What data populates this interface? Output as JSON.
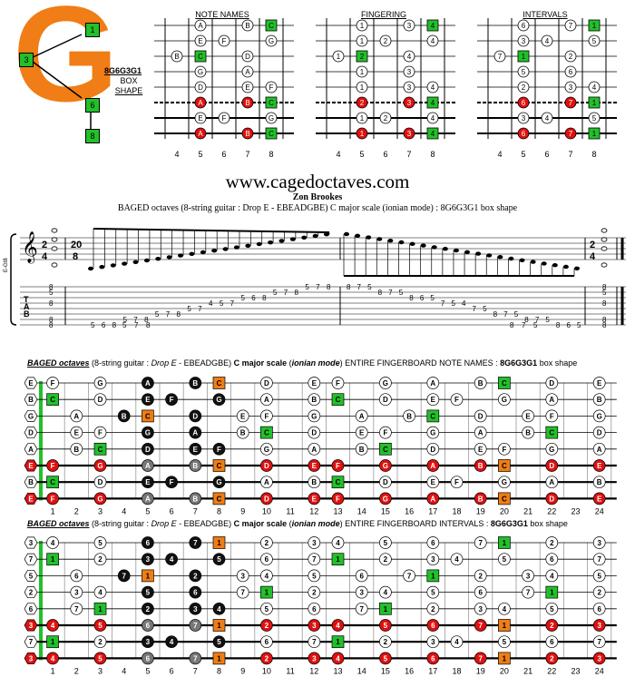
{
  "logo": {
    "letter": "G",
    "shape_code": "8G6G3G1",
    "box_label": "BOX",
    "shape_label": "SHAPE",
    "markers": [
      "1",
      "3",
      "6",
      "8"
    ]
  },
  "diagram_titles": {
    "notes": "NOTE NAMES",
    "fingering": "FINGERING",
    "intervals": "INTERVALS"
  },
  "diagram_frets": [
    "4",
    "5",
    "6",
    "7",
    "8"
  ],
  "box_notes": [
    [
      "",
      "A",
      "",
      "B",
      "C"
    ],
    [
      "",
      "E",
      "F",
      "",
      "G"
    ],
    [
      "B",
      "C",
      "",
      "D",
      ""
    ],
    [
      "",
      "G",
      "",
      "A",
      ""
    ],
    [
      "",
      "D",
      "",
      "E",
      "F"
    ],
    [
      "",
      "A",
      "",
      "B",
      "C"
    ],
    [
      "",
      "E",
      "F",
      "",
      "G"
    ],
    [
      "",
      "A",
      "",
      "B",
      "C"
    ]
  ],
  "box_fingers": [
    [
      "",
      "1",
      "",
      "3",
      "4"
    ],
    [
      "",
      "1",
      "2",
      "",
      "4"
    ],
    [
      "1",
      "2",
      "",
      "4",
      ""
    ],
    [
      "",
      "1",
      "",
      "3",
      ""
    ],
    [
      "",
      "1",
      "",
      "3",
      "4"
    ],
    [
      "",
      "2",
      "",
      "3",
      "4"
    ],
    [
      "",
      "1",
      "2",
      "",
      "4"
    ],
    [
      "",
      "1",
      "",
      "3",
      "4"
    ]
  ],
  "box_intervals": [
    [
      "",
      "6",
      "",
      "7",
      "1"
    ],
    [
      "",
      "3",
      "4",
      "",
      "5"
    ],
    [
      "7",
      "1",
      "",
      "2",
      ""
    ],
    [
      "",
      "5",
      "",
      "6",
      ""
    ],
    [
      "",
      "2",
      "",
      "3",
      "4"
    ],
    [
      "",
      "6",
      "",
      "7",
      "1"
    ],
    [
      "",
      "3",
      "4",
      "",
      "5"
    ],
    [
      "",
      "6",
      "",
      "7",
      "1"
    ]
  ],
  "site": "www.cagedoctaves.com",
  "author": "Zon Brookes",
  "description": "BAGED octaves (8-string guitar : Drop E - EBEADGBE) C major scale (ionian mode) : 8G6G3G1 box shape",
  "notation": {
    "time_top": "2",
    "time_bottom": "4",
    "time2_top": "20",
    "time2_bottom": "8",
    "staff_label": "E-Gt8",
    "tab_letters": [
      "T",
      "A",
      "B"
    ]
  },
  "tab_columns": [
    [
      "",
      "",
      "",
      "",
      "",
      "",
      "8",
      "8"
    ],
    [
      "",
      "",
      "",
      "",
      "",
      "",
      "",
      "5",
      "8"
    ],
    [
      "",
      "",
      "",
      "",
      "",
      "",
      "5"
    ],
    [
      "",
      "",
      "",
      "",
      "",
      "",
      "",
      "6"
    ],
    [
      "",
      "",
      "",
      "",
      "",
      "",
      "",
      "8"
    ],
    [
      "",
      "",
      "",
      "",
      "",
      "5",
      "5"
    ],
    [
      "",
      "",
      "",
      "",
      "",
      "7",
      "7"
    ],
    [
      "",
      "",
      "",
      "",
      "",
      "8",
      "8"
    ],
    [
      "",
      "",
      "",
      "",
      "5"
    ],
    [
      "",
      "",
      "",
      "",
      "7"
    ],
    [
      "",
      "",
      "",
      "",
      "8"
    ],
    [
      "",
      "",
      "",
      "5"
    ],
    [
      "",
      "",
      "",
      "7"
    ],
    [
      "",
      "",
      "4"
    ],
    [
      "",
      "",
      "5"
    ],
    [
      "",
      "",
      "7"
    ],
    [
      "",
      "5"
    ],
    [
      "",
      "6"
    ],
    [
      "",
      "8"
    ],
    [
      "5"
    ],
    [
      "7"
    ],
    [
      "8"
    ]
  ],
  "tab_right": [
    [
      "8",
      "8",
      "8"
    ],
    [
      "5",
      "8"
    ],
    [
      "5"
    ],
    [
      "8"
    ]
  ],
  "fretboard_notes_title": {
    "lead": "BAGED octaves",
    "mid": " (8-string guitar : ",
    "tuning": "Drop E",
    "mid2": " - EBEADGBE) ",
    "scale": "C major scale",
    "mid3": " (",
    "mode": "ionian mode",
    "mid4": ") ENTIRE FINGERBOARD  NOTE NAMES : ",
    "shape": "8G6G3G1",
    "tail": " box shape"
  },
  "fretboard_intervals_title": {
    "lead": "BAGED octaves",
    "mid": " (8-string guitar : ",
    "tuning": "Drop E",
    "mid2": " - EBEADGBE) ",
    "scale": "C major scale",
    "mid3": " (",
    "mode": "ionian mode",
    "mid4": ") ENTIRE FINGERBOARD  INTERVALS : ",
    "shape": "8G6G3G1",
    "tail": " box shape"
  },
  "fret_numbers": [
    "1",
    "2",
    "3",
    "4",
    "5",
    "6",
    "7",
    "8",
    "9",
    "10",
    "11",
    "12",
    "13",
    "14",
    "15",
    "16",
    "17",
    "18",
    "19",
    "20",
    "21",
    "22",
    "23",
    "24"
  ],
  "open_notes": [
    "E",
    "B",
    "G",
    "D",
    "A",
    "E",
    "B",
    "E"
  ],
  "open_intervals": [
    "3",
    "7",
    "5",
    "2",
    "6",
    "3",
    "7",
    "3"
  ],
  "colors": {
    "accent_orange": "#f07d15",
    "root_green": "#22c02a",
    "octave_red": "#e01010",
    "dark_note": "#111111",
    "mid_gray": "#777777"
  }
}
